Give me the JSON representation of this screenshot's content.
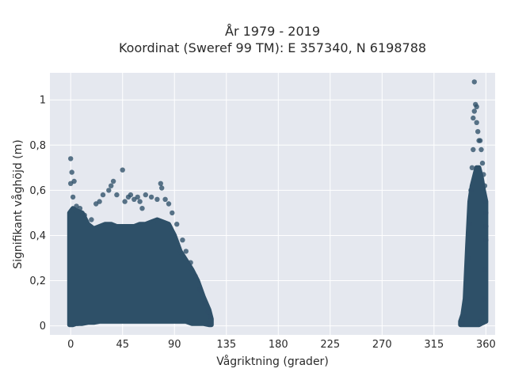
{
  "chart_data": {
    "type": "scatter",
    "title": "År 1979 - 2019",
    "subtitle": "Koordinat (Sweref 99 TM): E 357340, N 6198788",
    "xlabel": "Vågriktning (grader)",
    "ylabel": "Signifikant våghöjd (m)",
    "xlim": [
      -18,
      368
    ],
    "ylim": [
      -0.04,
      1.12
    ],
    "x_ticks": [
      0,
      45,
      90,
      135,
      180,
      225,
      270,
      315,
      360
    ],
    "x_tick_labels": [
      "0",
      "45",
      "90",
      "135",
      "180",
      "225",
      "270",
      "315",
      "360"
    ],
    "y_ticks": [
      0,
      0.2,
      0.4,
      0.6,
      0.8,
      1
    ],
    "y_tick_labels": [
      "0",
      "0,2",
      "0,4",
      "0,6",
      "0,8",
      "1"
    ],
    "grid": true,
    "marker_color": "#2e5068",
    "background_color": "#e5e8ef",
    "series": [
      {
        "points": [
          [
            0,
            0.74
          ],
          [
            1,
            0.68
          ],
          [
            0,
            0.63
          ],
          [
            3,
            0.64
          ],
          [
            2,
            0.57
          ],
          [
            5,
            0.53
          ],
          [
            8,
            0.52
          ],
          [
            12,
            0.49
          ],
          [
            18,
            0.47
          ],
          [
            22,
            0.54
          ],
          [
            25,
            0.55
          ],
          [
            28,
            0.58
          ],
          [
            33,
            0.6
          ],
          [
            35,
            0.62
          ],
          [
            37,
            0.64
          ],
          [
            40,
            0.58
          ],
          [
            45,
            0.69
          ],
          [
            47,
            0.55
          ],
          [
            50,
            0.57
          ],
          [
            52,
            0.58
          ],
          [
            55,
            0.56
          ],
          [
            58,
            0.57
          ],
          [
            60,
            0.55
          ],
          [
            62,
            0.52
          ],
          [
            65,
            0.58
          ],
          [
            70,
            0.57
          ],
          [
            75,
            0.56
          ],
          [
            78,
            0.63
          ],
          [
            79,
            0.61
          ],
          [
            82,
            0.56
          ],
          [
            85,
            0.54
          ],
          [
            88,
            0.5
          ],
          [
            92,
            0.45
          ],
          [
            97,
            0.38
          ],
          [
            100,
            0.33
          ],
          [
            104,
            0.28
          ],
          [
            108,
            0.22
          ],
          [
            112,
            0.16
          ],
          [
            116,
            0.1
          ],
          [
            119,
            0.06
          ],
          [
            121,
            0.04
          ],
          [
            120,
            0.01
          ],
          [
            6,
            0.01
          ],
          [
            340,
            0.01
          ],
          [
            342,
            0.04
          ],
          [
            344,
            0.12
          ],
          [
            345,
            0.3
          ],
          [
            346,
            0.45
          ],
          [
            347,
            0.6
          ],
          [
            348,
            0.7
          ],
          [
            349,
            0.78
          ],
          [
            349,
            0.92
          ],
          [
            350,
            0.95
          ],
          [
            350,
            1.08
          ],
          [
            351,
            0.98
          ],
          [
            352,
            0.97
          ],
          [
            352,
            0.9
          ],
          [
            353,
            0.86
          ],
          [
            354,
            0.82
          ],
          [
            355,
            0.82
          ],
          [
            356,
            0.78
          ],
          [
            357,
            0.72
          ],
          [
            358,
            0.67
          ],
          [
            359,
            0.62
          ],
          [
            359,
            0.55
          ],
          [
            360,
            0.5
          ],
          [
            360,
            0.44
          ],
          [
            360,
            0.38
          ],
          [
            359,
            0.25
          ],
          [
            358,
            0.12
          ],
          [
            357,
            0.06
          ],
          [
            355,
            0.02
          ]
        ]
      }
    ],
    "density_envelope": {
      "cluster_0_120": {
        "x": [
          -1,
          2,
          5,
          10,
          15,
          20,
          25,
          30,
          35,
          40,
          45,
          50,
          55,
          60,
          65,
          70,
          75,
          80,
          85,
          90,
          95,
          100,
          105,
          110,
          115,
          120,
          122
        ],
        "y_min": [
          0.005,
          0.005,
          0.01,
          0.01,
          0.015,
          0.015,
          0.02,
          0.02,
          0.02,
          0.02,
          0.02,
          0.02,
          0.02,
          0.02,
          0.02,
          0.02,
          0.02,
          0.02,
          0.02,
          0.02,
          0.02,
          0.02,
          0.01,
          0.01,
          0.01,
          0.005,
          0.005
        ],
        "y_max": [
          0.5,
          0.52,
          0.51,
          0.5,
          0.45,
          0.43,
          0.44,
          0.45,
          0.45,
          0.44,
          0.44,
          0.44,
          0.44,
          0.45,
          0.45,
          0.46,
          0.47,
          0.46,
          0.45,
          0.4,
          0.33,
          0.29,
          0.25,
          0.2,
          0.13,
          0.07,
          0.03
        ]
      },
      "cluster_340_360": {
        "x": [
          338,
          340,
          342,
          344,
          346,
          348,
          350,
          352,
          354,
          356,
          358,
          360
        ],
        "y_min": [
          0.005,
          0.005,
          0.005,
          0.005,
          0.005,
          0.005,
          0.005,
          0.005,
          0.005,
          0.01,
          0.015,
          0.02
        ],
        "y_max": [
          0.02,
          0.05,
          0.12,
          0.35,
          0.55,
          0.62,
          0.66,
          0.7,
          0.7,
          0.66,
          0.6,
          0.55
        ]
      }
    }
  }
}
